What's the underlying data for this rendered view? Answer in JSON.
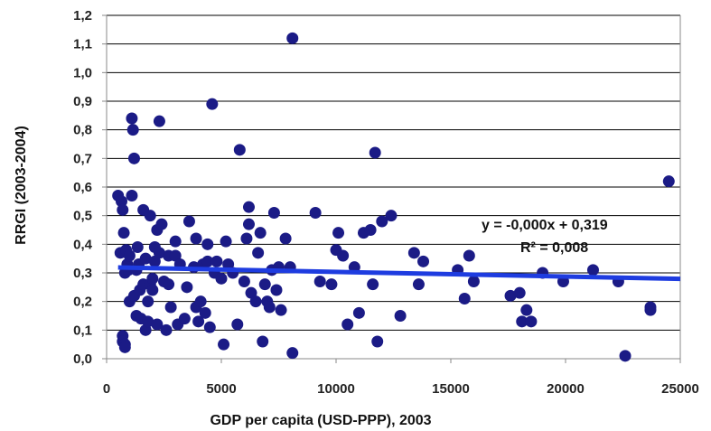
{
  "chart_data": {
    "type": "scatter",
    "xlabel": "GDP per capita (USD-PPP), 2003",
    "ylabel": "RRGI (2003-2004)",
    "xlim": [
      0,
      25000
    ],
    "ylim": [
      0,
      1.2
    ],
    "x_ticks": [
      "0",
      "5000",
      "10000",
      "15000",
      "20000",
      "25000"
    ],
    "y_ticks": [
      "0,0",
      "0,1",
      "0,2",
      "0,3",
      "0,4",
      "0,5",
      "0,6",
      "0,7",
      "0,8",
      "0,9",
      "1,0",
      "1,1",
      "1,2"
    ],
    "grid": "horizontal",
    "point_color": "#1b1b86",
    "trendline_color": "#1e3ce0",
    "trendline": {
      "slope": 0,
      "intercept": 0.319,
      "x_range": [
        500,
        25000
      ],
      "y_end": 0.279
    },
    "annotations": {
      "equation": "y = -0,000x + 0,319",
      "r_squared": "R² = 0,008"
    },
    "points": [
      [
        500,
        0.57
      ],
      [
        600,
        0.37
      ],
      [
        650,
        0.55
      ],
      [
        700,
        0.52
      ],
      [
        700,
        0.08
      ],
      [
        700,
        0.06
      ],
      [
        750,
        0.44
      ],
      [
        800,
        0.05
      ],
      [
        800,
        0.04
      ],
      [
        800,
        0.3
      ],
      [
        850,
        0.38
      ],
      [
        900,
        0.33
      ],
      [
        950,
        0.31
      ],
      [
        1000,
        0.36
      ],
      [
        1000,
        0.2
      ],
      [
        1100,
        0.57
      ],
      [
        1100,
        0.84
      ],
      [
        1150,
        0.8
      ],
      [
        1200,
        0.7
      ],
      [
        1200,
        0.22
      ],
      [
        1300,
        0.15
      ],
      [
        1300,
        0.31
      ],
      [
        1350,
        0.39
      ],
      [
        1400,
        0.33
      ],
      [
        1450,
        0.24
      ],
      [
        1500,
        0.14
      ],
      [
        1600,
        0.52
      ],
      [
        1600,
        0.26
      ],
      [
        1700,
        0.1
      ],
      [
        1700,
        0.35
      ],
      [
        1800,
        0.2
      ],
      [
        1800,
        0.13
      ],
      [
        1900,
        0.5
      ],
      [
        1900,
        0.26
      ],
      [
        2000,
        0.28
      ],
      [
        2000,
        0.24
      ],
      [
        2100,
        0.34
      ],
      [
        2100,
        0.39
      ],
      [
        2200,
        0.12
      ],
      [
        2200,
        0.45
      ],
      [
        2300,
        0.37
      ],
      [
        2300,
        0.83
      ],
      [
        2400,
        0.47
      ],
      [
        2500,
        0.27
      ],
      [
        2600,
        0.1
      ],
      [
        2700,
        0.36
      ],
      [
        2700,
        0.26
      ],
      [
        2800,
        0.18
      ],
      [
        3000,
        0.36
      ],
      [
        3000,
        0.41
      ],
      [
        3100,
        0.12
      ],
      [
        3200,
        0.33
      ],
      [
        3400,
        0.14
      ],
      [
        3500,
        0.25
      ],
      [
        3600,
        0.48
      ],
      [
        3800,
        0.32
      ],
      [
        3900,
        0.18
      ],
      [
        3900,
        0.42
      ],
      [
        4000,
        0.13
      ],
      [
        4100,
        0.2
      ],
      [
        4200,
        0.33
      ],
      [
        4300,
        0.16
      ],
      [
        4400,
        0.34
      ],
      [
        4400,
        0.4
      ],
      [
        4500,
        0.11
      ],
      [
        4600,
        0.89
      ],
      [
        4700,
        0.3
      ],
      [
        4800,
        0.34
      ],
      [
        5000,
        0.28
      ],
      [
        5100,
        0.05
      ],
      [
        5200,
        0.41
      ],
      [
        5300,
        0.33
      ],
      [
        5500,
        0.3
      ],
      [
        5700,
        0.12
      ],
      [
        5800,
        0.73
      ],
      [
        6000,
        0.27
      ],
      [
        6100,
        0.42
      ],
      [
        6200,
        0.53
      ],
      [
        6200,
        0.47
      ],
      [
        6300,
        0.23
      ],
      [
        6500,
        0.2
      ],
      [
        6600,
        0.37
      ],
      [
        6700,
        0.44
      ],
      [
        6800,
        0.06
      ],
      [
        6900,
        0.26
      ],
      [
        7000,
        0.2
      ],
      [
        7100,
        0.18
      ],
      [
        7200,
        0.31
      ],
      [
        7300,
        0.51
      ],
      [
        7400,
        0.24
      ],
      [
        7500,
        0.32
      ],
      [
        7600,
        0.17
      ],
      [
        7800,
        0.42
      ],
      [
        8000,
        0.32
      ],
      [
        8100,
        1.12
      ],
      [
        8100,
        0.02
      ],
      [
        9100,
        0.51
      ],
      [
        9300,
        0.27
      ],
      [
        9800,
        0.26
      ],
      [
        10000,
        0.38
      ],
      [
        10100,
        0.44
      ],
      [
        10300,
        0.36
      ],
      [
        10500,
        0.12
      ],
      [
        10800,
        0.32
      ],
      [
        11000,
        0.16
      ],
      [
        11200,
        0.44
      ],
      [
        11500,
        0.45
      ],
      [
        11600,
        0.26
      ],
      [
        11700,
        0.72
      ],
      [
        11800,
        0.06
      ],
      [
        12000,
        0.48
      ],
      [
        12400,
        0.5
      ],
      [
        12800,
        0.15
      ],
      [
        13400,
        0.37
      ],
      [
        13600,
        0.26
      ],
      [
        13800,
        0.34
      ],
      [
        15300,
        0.31
      ],
      [
        15600,
        0.21
      ],
      [
        15800,
        0.36
      ],
      [
        16000,
        0.27
      ],
      [
        17600,
        0.22
      ],
      [
        18000,
        0.23
      ],
      [
        18100,
        0.13
      ],
      [
        18300,
        0.17
      ],
      [
        18500,
        0.13
      ],
      [
        19000,
        0.3
      ],
      [
        19900,
        0.27
      ],
      [
        21200,
        0.31
      ],
      [
        22300,
        0.27
      ],
      [
        22600,
        0.01
      ],
      [
        23700,
        0.18
      ],
      [
        23700,
        0.17
      ],
      [
        24500,
        0.62
      ]
    ]
  }
}
